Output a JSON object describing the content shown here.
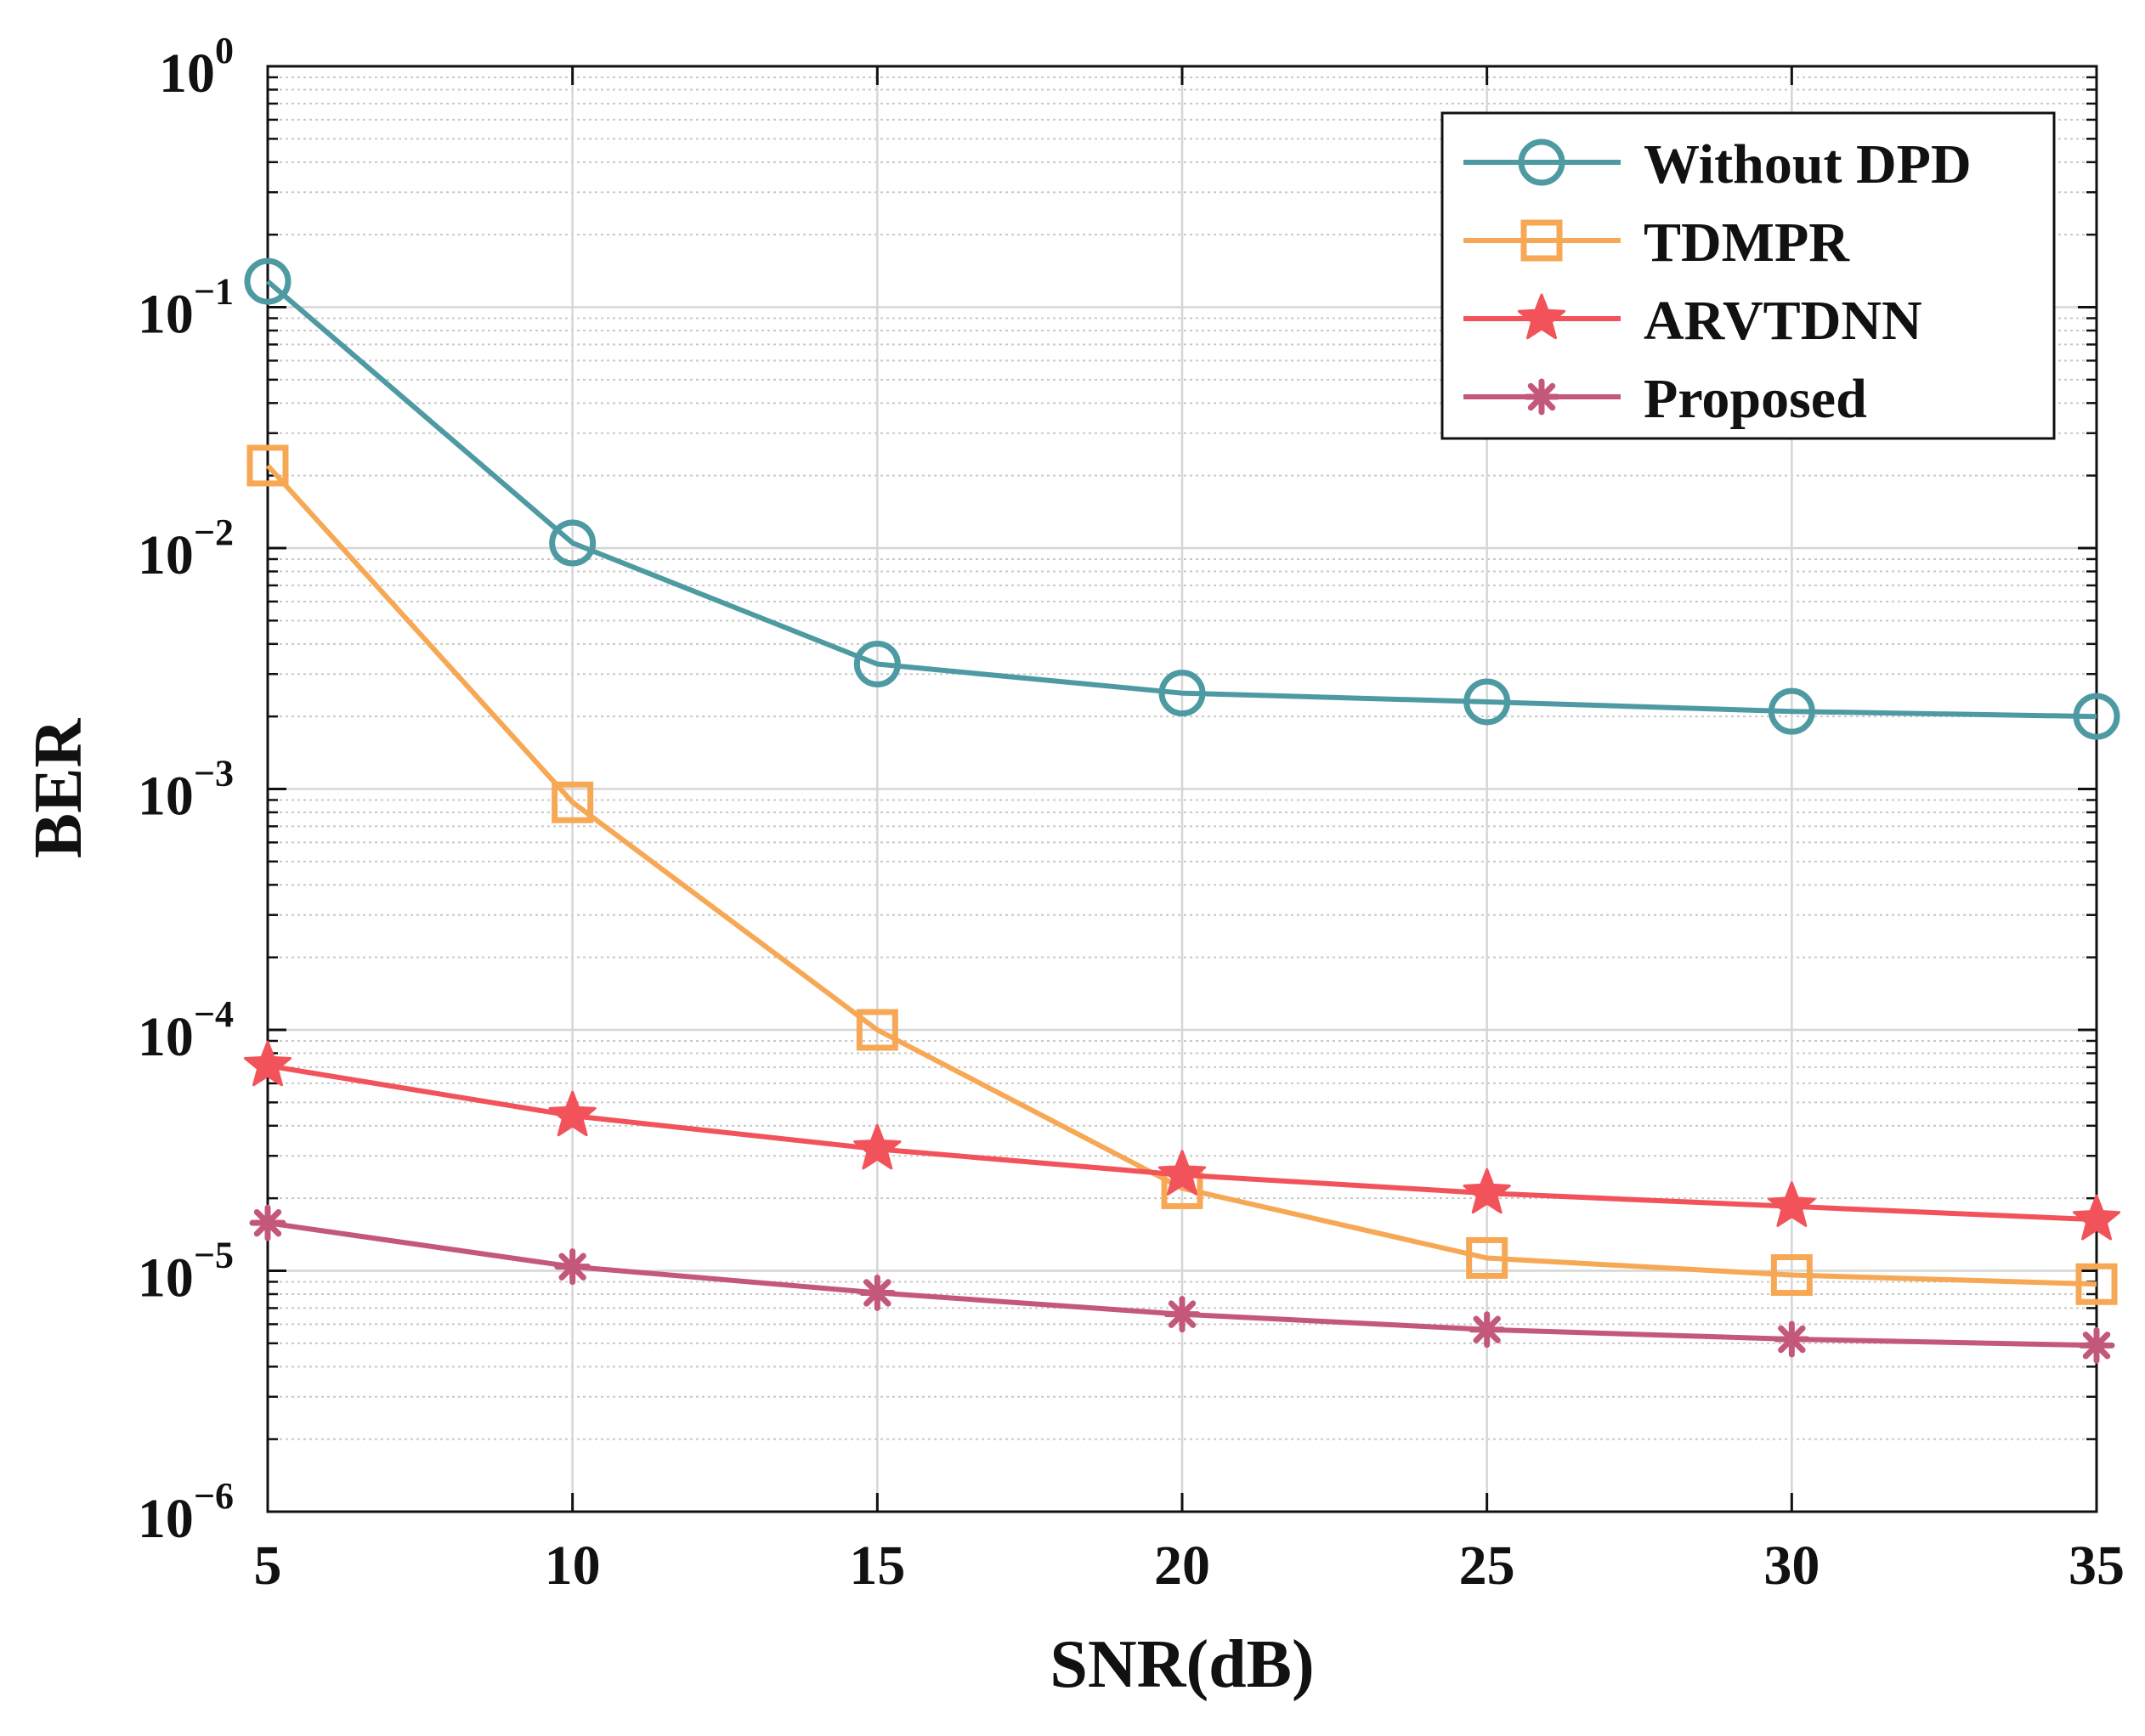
{
  "chart_data": {
    "type": "line",
    "title": "",
    "xlabel": "SNR(dB)",
    "ylabel": "BER",
    "xscale": "linear",
    "yscale": "log",
    "xlim": [
      5,
      35
    ],
    "ylim": [
      1e-06,
      1
    ],
    "grid": true,
    "legend_position": "top-right",
    "x": [
      5,
      10,
      15,
      20,
      25,
      30,
      35
    ],
    "x_tick_labels": [
      "5",
      "10",
      "15",
      "20",
      "25",
      "30",
      "35"
    ],
    "y_ticks": [
      {
        "base": "10",
        "exp": "0"
      },
      {
        "base": "10",
        "exp": "−1"
      },
      {
        "base": "10",
        "exp": "−2"
      },
      {
        "base": "10",
        "exp": "−3"
      },
      {
        "base": "10",
        "exp": "−4"
      },
      {
        "base": "10",
        "exp": "−5"
      },
      {
        "base": "10",
        "exp": "−6"
      }
    ],
    "series": [
      {
        "name": "Without DPD",
        "color": "#4e9aa3",
        "marker": "circle",
        "values": [
          0.128,
          0.0105,
          0.0033,
          0.0025,
          0.0023,
          0.0021,
          0.002
        ]
      },
      {
        "name": "TDMPR",
        "color": "#f7a855",
        "marker": "square",
        "values": [
          0.022,
          0.00088,
          0.0001,
          2.2e-05,
          1.13e-05,
          9.6e-06,
          8.8e-06
        ]
      },
      {
        "name": "ARVTDNN",
        "color": "#f2535b",
        "marker": "star",
        "values": [
          7.1e-05,
          4.4e-05,
          3.2e-05,
          2.5e-05,
          2.1e-05,
          1.85e-05,
          1.63e-05
        ]
      },
      {
        "name": "Proposed",
        "color": "#c4587a",
        "marker": "asterisk",
        "values": [
          1.58e-05,
          1.04e-05,
          8.1e-06,
          6.6e-06,
          5.7e-06,
          5.2e-06,
          4.9e-06
        ]
      }
    ]
  }
}
